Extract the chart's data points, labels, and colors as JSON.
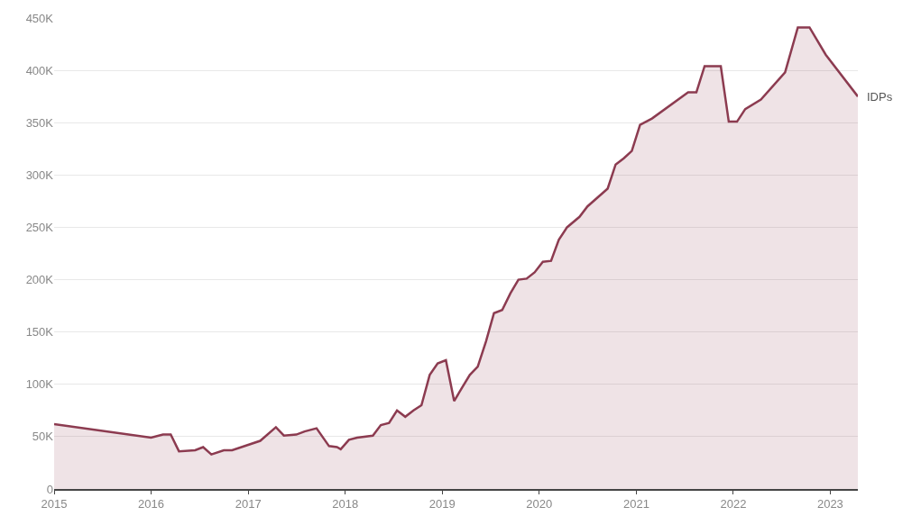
{
  "chart_data": {
    "type": "area",
    "x": [
      "2015-01-01",
      "2016-01-01",
      "2016-02-15",
      "2016-03-15",
      "2016-04-15",
      "2016-06-15",
      "2016-07-15",
      "2016-08-15",
      "2016-10-01",
      "2016-11-01",
      "2017-02-15",
      "2017-04-15",
      "2017-05-15",
      "2017-07-01",
      "2017-08-01",
      "2017-09-15",
      "2017-11-01",
      "2017-12-01",
      "2017-12-15",
      "2018-01-15",
      "2018-02-15",
      "2018-04-15",
      "2018-05-15",
      "2018-06-15",
      "2018-07-15",
      "2018-08-15",
      "2018-09-15",
      "2018-10-15",
      "2018-11-15",
      "2018-12-15",
      "2019-01-15",
      "2019-02-15",
      "2019-03-15",
      "2019-04-15",
      "2019-05-15",
      "2019-06-15",
      "2019-07-15",
      "2019-08-15",
      "2019-09-15",
      "2019-10-15",
      "2019-11-15",
      "2019-12-15",
      "2020-01-15",
      "2020-02-15",
      "2020-03-15",
      "2020-04-15",
      "2020-06-01",
      "2020-07-01",
      "2020-09-15",
      "2020-10-15",
      "2020-11-15",
      "2020-12-15",
      "2021-01-15",
      "2021-03-01",
      "2021-07-15",
      "2021-08-15",
      "2021-09-15",
      "2021-11-15",
      "2021-12-15",
      "2022-01-15",
      "2022-02-15",
      "2022-04-15",
      "2022-07-15",
      "2022-09-01",
      "2022-10-15",
      "2022-12-15",
      "2023-04-15"
    ],
    "series": [
      {
        "name": "IDPs",
        "color": "#8c3b50",
        "values": [
          62000,
          49000,
          52000,
          52000,
          36000,
          37000,
          40000,
          33000,
          37000,
          37000,
          46000,
          59000,
          51000,
          52000,
          55000,
          58000,
          41000,
          40000,
          38000,
          47000,
          49000,
          51000,
          61000,
          63000,
          75000,
          69000,
          75000,
          80000,
          109000,
          120000,
          123000,
          84000,
          96000,
          109000,
          117000,
          141000,
          168000,
          171000,
          187000,
          200000,
          201000,
          207000,
          217000,
          218000,
          238000,
          250000,
          260000,
          270000,
          287000,
          310000,
          316000,
          323000,
          348000,
          354000,
          379000,
          379000,
          404000,
          404000,
          351000,
          351000,
          363000,
          372000,
          398000,
          441000,
          441000,
          415000,
          375000
        ]
      }
    ],
    "xlim": [
      "2015-01-01",
      "2023-04-15"
    ],
    "xticks": [
      "2015",
      "2016",
      "2017",
      "2018",
      "2019",
      "2020",
      "2021",
      "2022",
      "2023"
    ],
    "ylim": [
      0,
      450000
    ],
    "yticks": [
      {
        "value": 0,
        "label": "0"
      },
      {
        "value": 50000,
        "label": "50K"
      },
      {
        "value": 100000,
        "label": "100K"
      },
      {
        "value": 150000,
        "label": "150K"
      },
      {
        "value": 200000,
        "label": "200K"
      },
      {
        "value": 250000,
        "label": "250K"
      },
      {
        "value": 300000,
        "label": "300K"
      },
      {
        "value": 350000,
        "label": "350K"
      },
      {
        "value": 400000,
        "label": "400K"
      },
      {
        "value": 450000,
        "label": "450K"
      }
    ],
    "grid": "y",
    "legend": false,
    "marker": "none",
    "line_style": "solid"
  }
}
